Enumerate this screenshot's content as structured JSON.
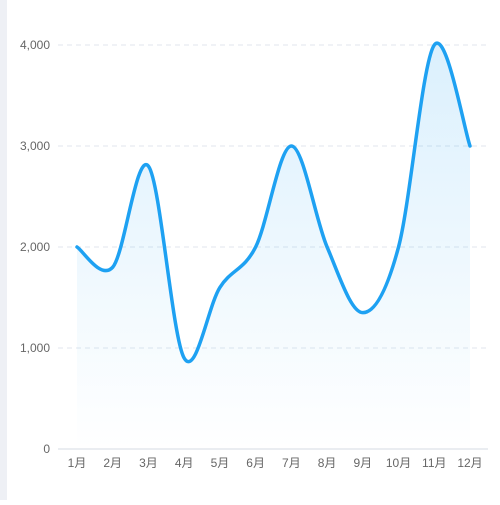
{
  "chart_data": {
    "type": "line",
    "smooth": true,
    "area_fill": true,
    "grid": true,
    "categories": [
      "1月",
      "2月",
      "3月",
      "4月",
      "5月",
      "6月",
      "7月",
      "8月",
      "9月",
      "10月",
      "11月",
      "12月"
    ],
    "series": [
      {
        "values": [
          2000,
          1800,
          2800,
          900,
          1600,
          2000,
          3000,
          2000,
          1350,
          2000,
          4000,
          3000
        ]
      }
    ],
    "ylim": [
      0,
      4000
    ],
    "yticks": [
      0,
      1000,
      2000,
      3000,
      4000
    ],
    "ytick_labels": [
      "0",
      "1,000",
      "2,000",
      "3,000",
      "4,000"
    ],
    "line_color": "#1ea1f2",
    "area_color": "#1ea1f2",
    "grid_color": "#e0e6ee",
    "axis_label_color": "#666666"
  }
}
